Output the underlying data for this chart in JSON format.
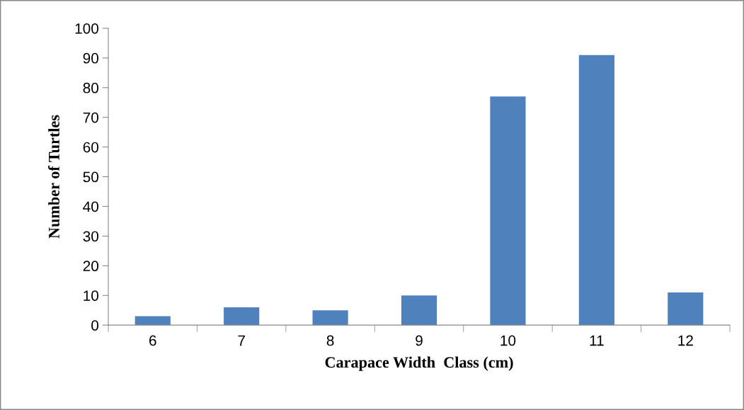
{
  "chart_data": {
    "type": "bar",
    "xlabel": "Carapace Width  Class (cm)",
    "ylabel": "Number of Turtles",
    "categories": [
      "6",
      "7",
      "8",
      "9",
      "10",
      "11",
      "12"
    ],
    "series": [
      {
        "color": "#4f81bd",
        "values": [
          3,
          6,
          5,
          10,
          77,
          91,
          11
        ]
      }
    ],
    "ylim": [
      0,
      100
    ],
    "yticks": [
      0,
      10,
      20,
      30,
      40,
      50,
      60,
      70,
      80,
      90,
      100
    ],
    "grid": false
  }
}
